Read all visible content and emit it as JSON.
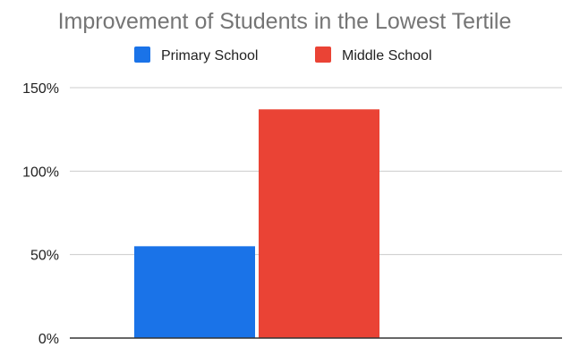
{
  "chart_data": {
    "type": "bar",
    "title": "Improvement of Students in the Lowest Tertile",
    "xlabel": "",
    "ylabel": "",
    "categories": [
      ""
    ],
    "series": [
      {
        "name": "Primary School",
        "color": "#1a73e8",
        "values": [
          55
        ]
      },
      {
        "name": "Middle School",
        "color": "#ea4335",
        "values": [
          137
        ]
      }
    ],
    "ylim": [
      0,
      150
    ],
    "yticks": [
      {
        "value": 0,
        "label": "0%"
      },
      {
        "value": 50,
        "label": "50%"
      },
      {
        "value": 100,
        "label": "100%"
      },
      {
        "value": 150,
        "label": "150%"
      }
    ],
    "grid": true,
    "legend_position": "top-center"
  }
}
